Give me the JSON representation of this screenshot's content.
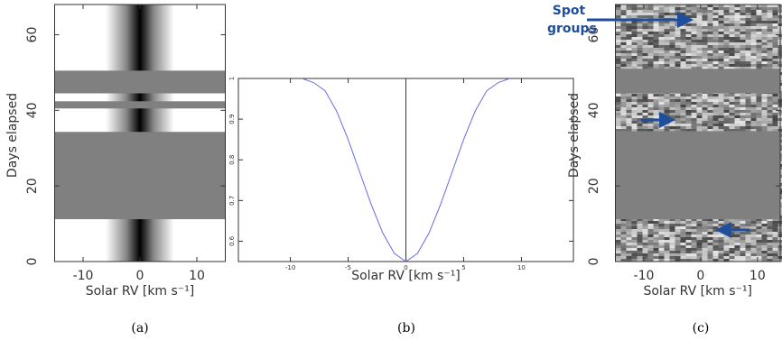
{
  "chart_data": [
    {
      "type": "image",
      "xlabel": "Solar RV [km s⁻¹]",
      "ylabel": "Days elapsed",
      "caption": "(a)",
      "xlim": [
        -15,
        15
      ],
      "ylim": [
        0,
        68
      ],
      "xticks": [
        -10,
        0,
        10
      ],
      "yticks": [
        0,
        20,
        40,
        60
      ],
      "gaps": [
        [
          11.2,
          34.3
        ],
        [
          40.5,
          42.4
        ],
        [
          44.5,
          50.5
        ]
      ],
      "gap_color": "#808080"
    },
    {
      "type": "line",
      "xlabel": "Solar RV [km s⁻¹]",
      "caption": "(b)",
      "x": [
        -9,
        -8,
        -7,
        -6,
        -5,
        -4,
        -3,
        -2,
        -1,
        0,
        1,
        2,
        3,
        4,
        5,
        6,
        7,
        8,
        9
      ],
      "series": [
        {
          "color": "#6a6ae0",
          "values": [
            1.0,
            0.99,
            0.97,
            0.92,
            0.85,
            0.77,
            0.69,
            0.62,
            0.57,
            0.55,
            0.57,
            0.62,
            0.69,
            0.77,
            0.85,
            0.92,
            0.97,
            0.99,
            1.0
          ]
        }
      ],
      "xlim": [
        -14.5,
        14.5
      ],
      "ylim": [
        0.55,
        1.0
      ],
      "xticks": [
        -10,
        -5,
        0,
        5,
        10
      ],
      "yticks": [
        0.6,
        0.7,
        0.8,
        0.9,
        1
      ]
    },
    {
      "type": "image",
      "xlabel": "Solar RV [km s⁻¹]",
      "ylabel": "Days elapsed",
      "caption": "(c)",
      "annotation": "Spot groups",
      "xlim": [
        -15,
        14
      ],
      "ylim": [
        0,
        68
      ],
      "xticks": [
        -10,
        0,
        10
      ],
      "yticks": [
        0,
        20,
        40,
        60
      ],
      "gaps": [
        [
          11.2,
          34.5
        ],
        [
          44.5,
          51
        ]
      ],
      "gap_color": "#808080"
    }
  ]
}
